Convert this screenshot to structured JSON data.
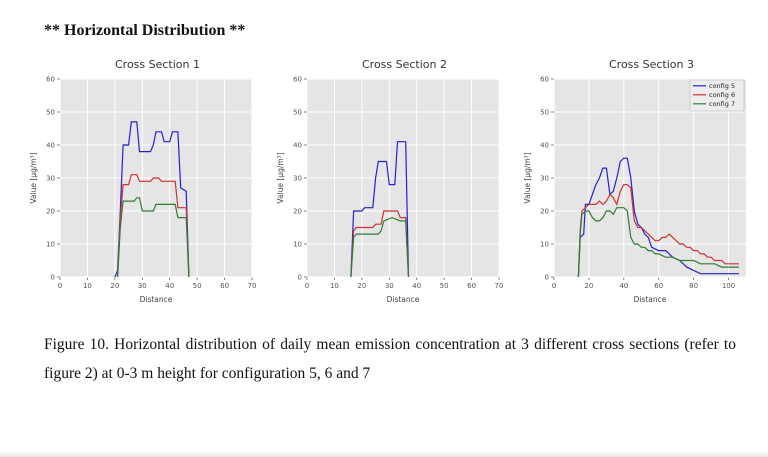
{
  "heading": "** Horizontal Distribution **",
  "caption": "Figure 10. Horizontal distribution of daily mean emission concentration at 3 different cross sections (refer to figure 2) at 0-3 m height for configuration 5, 6 and 7",
  "colors": {
    "plot_bg": "#e5e5e5",
    "grid": "#ffffff",
    "tick": "#555555",
    "config5": "#2323c8",
    "config6": "#cc3333",
    "config7": "#2e7d32"
  },
  "chart_data": [
    {
      "type": "line",
      "title": "Cross Section 1",
      "xlabel": "Distance",
      "ylabel": "Value [µg/m³]",
      "xlim": [
        0,
        70
      ],
      "ylim": [
        0,
        60
      ],
      "xticks": [
        0,
        10,
        20,
        30,
        40,
        50,
        60,
        70
      ],
      "yticks": [
        0,
        10,
        20,
        30,
        40,
        50,
        60
      ],
      "grid": true,
      "legend": false,
      "series": [
        {
          "name": "config 5",
          "color": "#2323c8",
          "points": [
            [
              20,
              0
            ],
            [
              21,
              2
            ],
            [
              22,
              20
            ],
            [
              23,
              40
            ],
            [
              25,
              40
            ],
            [
              26,
              47
            ],
            [
              28,
              47
            ],
            [
              29,
              38
            ],
            [
              33,
              38
            ],
            [
              34,
              40
            ],
            [
              35,
              44
            ],
            [
              37,
              44
            ],
            [
              38,
              41
            ],
            [
              40,
              41
            ],
            [
              41,
              44
            ],
            [
              43,
              44
            ],
            [
              44,
              27
            ],
            [
              46,
              26
            ],
            [
              47,
              0
            ]
          ]
        },
        {
          "name": "config 6",
          "color": "#cc3333",
          "points": [
            [
              21,
              0
            ],
            [
              22,
              18
            ],
            [
              23,
              28
            ],
            [
              25,
              28
            ],
            [
              26,
              31
            ],
            [
              28,
              31
            ],
            [
              29,
              29
            ],
            [
              33,
              29
            ],
            [
              34,
              30
            ],
            [
              36,
              30
            ],
            [
              37,
              29
            ],
            [
              42,
              29
            ],
            [
              43,
              21
            ],
            [
              46,
              21
            ],
            [
              47,
              0
            ]
          ]
        },
        {
          "name": "config 7",
          "color": "#2e7d32",
          "points": [
            [
              21,
              0
            ],
            [
              22,
              15
            ],
            [
              23,
              23
            ],
            [
              27,
              23
            ],
            [
              28,
              24
            ],
            [
              29,
              24
            ],
            [
              30,
              20
            ],
            [
              34,
              20
            ],
            [
              35,
              22
            ],
            [
              42,
              22
            ],
            [
              43,
              18
            ],
            [
              46,
              18
            ],
            [
              47,
              0
            ]
          ]
        }
      ]
    },
    {
      "type": "line",
      "title": "Cross Section 2",
      "xlabel": "Distance",
      "ylabel": "Value [µg/m³]",
      "xlim": [
        0,
        70
      ],
      "ylim": [
        0,
        60
      ],
      "xticks": [
        0,
        10,
        20,
        30,
        40,
        50,
        60,
        70
      ],
      "yticks": [
        0,
        10,
        20,
        30,
        40,
        50,
        60
      ],
      "grid": true,
      "legend": false,
      "series": [
        {
          "name": "config 5",
          "color": "#2323c8",
          "points": [
            [
              16,
              0
            ],
            [
              17,
              20
            ],
            [
              20,
              20
            ],
            [
              21,
              21
            ],
            [
              24,
              21
            ],
            [
              25,
              30
            ],
            [
              26,
              35
            ],
            [
              29,
              35
            ],
            [
              30,
              28
            ],
            [
              32,
              28
            ],
            [
              33,
              41
            ],
            [
              36,
              41
            ],
            [
              37,
              0
            ]
          ]
        },
        {
          "name": "config 6",
          "color": "#cc3333",
          "points": [
            [
              16,
              0
            ],
            [
              17,
              14
            ],
            [
              18,
              15
            ],
            [
              24,
              15
            ],
            [
              25,
              16
            ],
            [
              27,
              16
            ],
            [
              28,
              20
            ],
            [
              33,
              20
            ],
            [
              34,
              18
            ],
            [
              36,
              18
            ],
            [
              37,
              0
            ]
          ]
        },
        {
          "name": "config 7",
          "color": "#2e7d32",
          "points": [
            [
              16,
              0
            ],
            [
              17,
              12
            ],
            [
              18,
              13
            ],
            [
              26,
              13
            ],
            [
              27,
              14
            ],
            [
              28,
              17
            ],
            [
              31,
              18
            ],
            [
              34,
              17
            ],
            [
              36,
              17
            ],
            [
              37,
              0
            ]
          ]
        }
      ]
    },
    {
      "type": "line",
      "title": "Cross Section 3",
      "xlabel": "Distance",
      "ylabel": "Value [µg/m³]",
      "xlim": [
        0,
        110
      ],
      "ylim": [
        0,
        60
      ],
      "xticks": [
        0,
        20,
        40,
        60,
        80,
        100
      ],
      "yticks": [
        0,
        10,
        20,
        30,
        40,
        50,
        60
      ],
      "grid": true,
      "legend": true,
      "legend_position": "upper right",
      "series": [
        {
          "name": "config 5",
          "color": "#2323c8",
          "points": [
            [
              14,
              0
            ],
            [
              15,
              12
            ],
            [
              17,
              13
            ],
            [
              18,
              22
            ],
            [
              20,
              22
            ],
            [
              22,
              25
            ],
            [
              24,
              28
            ],
            [
              26,
              30
            ],
            [
              28,
              33
            ],
            [
              30,
              33
            ],
            [
              32,
              25
            ],
            [
              34,
              26
            ],
            [
              36,
              30
            ],
            [
              38,
              35
            ],
            [
              40,
              36
            ],
            [
              42,
              36
            ],
            [
              44,
              30
            ],
            [
              46,
              20
            ],
            [
              48,
              16
            ],
            [
              50,
              15
            ],
            [
              52,
              13
            ],
            [
              54,
              12
            ],
            [
              56,
              9
            ],
            [
              60,
              8
            ],
            [
              64,
              8
            ],
            [
              68,
              6
            ],
            [
              72,
              5
            ],
            [
              76,
              3
            ],
            [
              80,
              2
            ],
            [
              84,
              1
            ],
            [
              88,
              1
            ],
            [
              92,
              1
            ],
            [
              96,
              1
            ],
            [
              100,
              1
            ],
            [
              106,
              1
            ]
          ]
        },
        {
          "name": "config 6",
          "color": "#cc3333",
          "points": [
            [
              14,
              0
            ],
            [
              15,
              14
            ],
            [
              16,
              20
            ],
            [
              18,
              21
            ],
            [
              20,
              22
            ],
            [
              24,
              22
            ],
            [
              26,
              23
            ],
            [
              28,
              22
            ],
            [
              30,
              23
            ],
            [
              32,
              25
            ],
            [
              34,
              24
            ],
            [
              36,
              22
            ],
            [
              38,
              26
            ],
            [
              40,
              28
            ],
            [
              42,
              28
            ],
            [
              44,
              27
            ],
            [
              46,
              17
            ],
            [
              48,
              15
            ],
            [
              50,
              15
            ],
            [
              52,
              14
            ],
            [
              54,
              13
            ],
            [
              56,
              12
            ],
            [
              58,
              11
            ],
            [
              60,
              11
            ],
            [
              62,
              12
            ],
            [
              64,
              12
            ],
            [
              66,
              13
            ],
            [
              68,
              12
            ],
            [
              70,
              11
            ],
            [
              72,
              10
            ],
            [
              74,
              10
            ],
            [
              76,
              9
            ],
            [
              78,
              9
            ],
            [
              80,
              8
            ],
            [
              82,
              8
            ],
            [
              84,
              7
            ],
            [
              86,
              7
            ],
            [
              88,
              6
            ],
            [
              90,
              6
            ],
            [
              92,
              5
            ],
            [
              94,
              5
            ],
            [
              96,
              5
            ],
            [
              98,
              4
            ],
            [
              100,
              4
            ],
            [
              106,
              4
            ]
          ]
        },
        {
          "name": "config 7",
          "color": "#2e7d32",
          "points": [
            [
              14,
              0
            ],
            [
              15,
              13
            ],
            [
              16,
              19
            ],
            [
              18,
              20
            ],
            [
              20,
              20
            ],
            [
              22,
              18
            ],
            [
              24,
              17
            ],
            [
              26,
              17
            ],
            [
              28,
              18
            ],
            [
              30,
              20
            ],
            [
              32,
              20
            ],
            [
              34,
              19
            ],
            [
              36,
              21
            ],
            [
              38,
              21
            ],
            [
              40,
              21
            ],
            [
              42,
              20
            ],
            [
              44,
              12
            ],
            [
              46,
              10
            ],
            [
              48,
              10
            ],
            [
              50,
              9
            ],
            [
              52,
              9
            ],
            [
              54,
              8
            ],
            [
              56,
              8
            ],
            [
              58,
              7
            ],
            [
              60,
              7
            ],
            [
              64,
              6
            ],
            [
              68,
              6
            ],
            [
              72,
              5
            ],
            [
              76,
              5
            ],
            [
              80,
              5
            ],
            [
              84,
              4
            ],
            [
              88,
              4
            ],
            [
              92,
              4
            ],
            [
              96,
              3
            ],
            [
              100,
              3
            ],
            [
              106,
              3
            ]
          ]
        }
      ]
    }
  ]
}
